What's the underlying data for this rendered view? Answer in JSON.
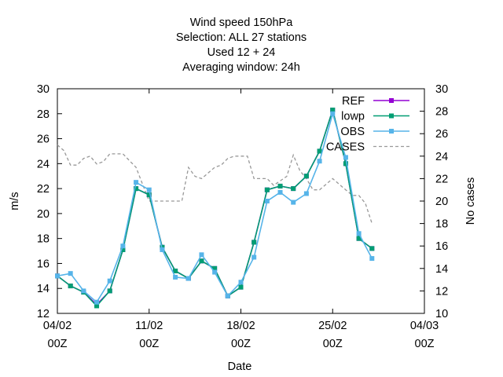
{
  "chart_data": {
    "type": "line",
    "title_lines": [
      "Wind speed 150hPa",
      "Selection: ALL      27 stations",
      "Used  12  + 24",
      "Averaging window: 24h"
    ],
    "xlabel": "Date",
    "ylabel": "m/s",
    "y2label": "No cases",
    "x_ticks": [
      {
        "line1": "04/02",
        "line2": "00Z",
        "day": 0
      },
      {
        "line1": "11/02",
        "line2": "00Z",
        "day": 7
      },
      {
        "line1": "18/02",
        "line2": "00Z",
        "day": 14
      },
      {
        "line1": "25/02",
        "line2": "00Z",
        "day": 21
      },
      {
        "line1": "04/03",
        "line2": "00Z",
        "day": 28
      }
    ],
    "xlim": [
      0,
      28
    ],
    "ylim": [
      12,
      30
    ],
    "y_ticks": [
      12,
      14,
      16,
      18,
      20,
      22,
      24,
      26,
      28,
      30
    ],
    "y2lim": [
      10,
      30
    ],
    "y2_ticks": [
      10,
      12,
      14,
      16,
      18,
      20,
      22,
      24,
      26,
      28,
      30
    ],
    "grid": false,
    "legend_position": "top-right",
    "x": [
      0,
      1,
      2,
      3,
      4,
      5,
      6,
      7,
      8,
      9,
      10,
      11,
      12,
      13,
      14,
      15,
      16,
      17,
      18,
      19,
      20,
      21,
      22,
      23,
      24
    ],
    "series": [
      {
        "name": "REF",
        "color": "#9400d3",
        "marker": "square",
        "axis": "y",
        "values": [
          15.0,
          14.2,
          13.7,
          12.7,
          13.8,
          17.1,
          22.0,
          21.5,
          17.3,
          15.4,
          14.8,
          16.2,
          15.6,
          13.4,
          14.1,
          17.7,
          21.9,
          22.2,
          22.0,
          23.0,
          25.0,
          28.3,
          24.0,
          18.0,
          17.2
        ]
      },
      {
        "name": "lowp",
        "color": "#009e73",
        "marker": "square",
        "axis": "y",
        "values": [
          15.0,
          14.2,
          13.7,
          12.6,
          13.8,
          17.1,
          22.0,
          21.5,
          17.3,
          15.4,
          14.8,
          16.2,
          15.6,
          13.4,
          14.1,
          17.7,
          21.9,
          22.2,
          22.0,
          23.0,
          25.0,
          28.3,
          24.0,
          18.0,
          17.2
        ]
      },
      {
        "name": "OBS",
        "color": "#56b4e9",
        "marker": "square",
        "axis": "y",
        "values": [
          15.0,
          15.2,
          13.8,
          12.9,
          14.6,
          17.4,
          22.5,
          21.9,
          17.1,
          14.9,
          14.8,
          16.7,
          15.3,
          13.4,
          14.5,
          16.5,
          21.0,
          21.7,
          20.9,
          21.6,
          24.2,
          28.0,
          24.5,
          18.4,
          16.4
        ]
      },
      {
        "name": "CASES",
        "color": "#999999",
        "marker": "none",
        "dash": true,
        "axis": "y2",
        "x": [
          0,
          0.5,
          1,
          1.5,
          2,
          2.5,
          3,
          3.5,
          4,
          4.5,
          5,
          5.5,
          6,
          6.5,
          7,
          7.5,
          8,
          8.5,
          9,
          9.5,
          10,
          10.5,
          11,
          11.5,
          12,
          12.5,
          13,
          13.5,
          14,
          14.5,
          15,
          15.5,
          16,
          16.5,
          17,
          17.5,
          18,
          18.5,
          19,
          19.5,
          20,
          20.5,
          21,
          21.5,
          22,
          22.5,
          23,
          23.5,
          24
        ],
        "values": [
          25,
          24.5,
          23.2,
          23.2,
          23.8,
          24.0,
          23.3,
          23.5,
          24.2,
          24.2,
          24.2,
          23.6,
          23.0,
          21.5,
          20.0,
          20.0,
          20.0,
          20.0,
          20.0,
          20.0,
          23.0,
          22.2,
          22.0,
          22.5,
          23.0,
          23.2,
          23.8,
          24.0,
          24.0,
          24.0,
          22.0,
          22.0,
          22.0,
          21.4,
          21.8,
          22.2,
          24.1,
          22.7,
          22.0,
          21.0,
          21.0,
          21.5,
          22.0,
          21.5,
          21.0,
          20.5,
          20.5,
          19.8,
          18.0
        ]
      }
    ]
  }
}
